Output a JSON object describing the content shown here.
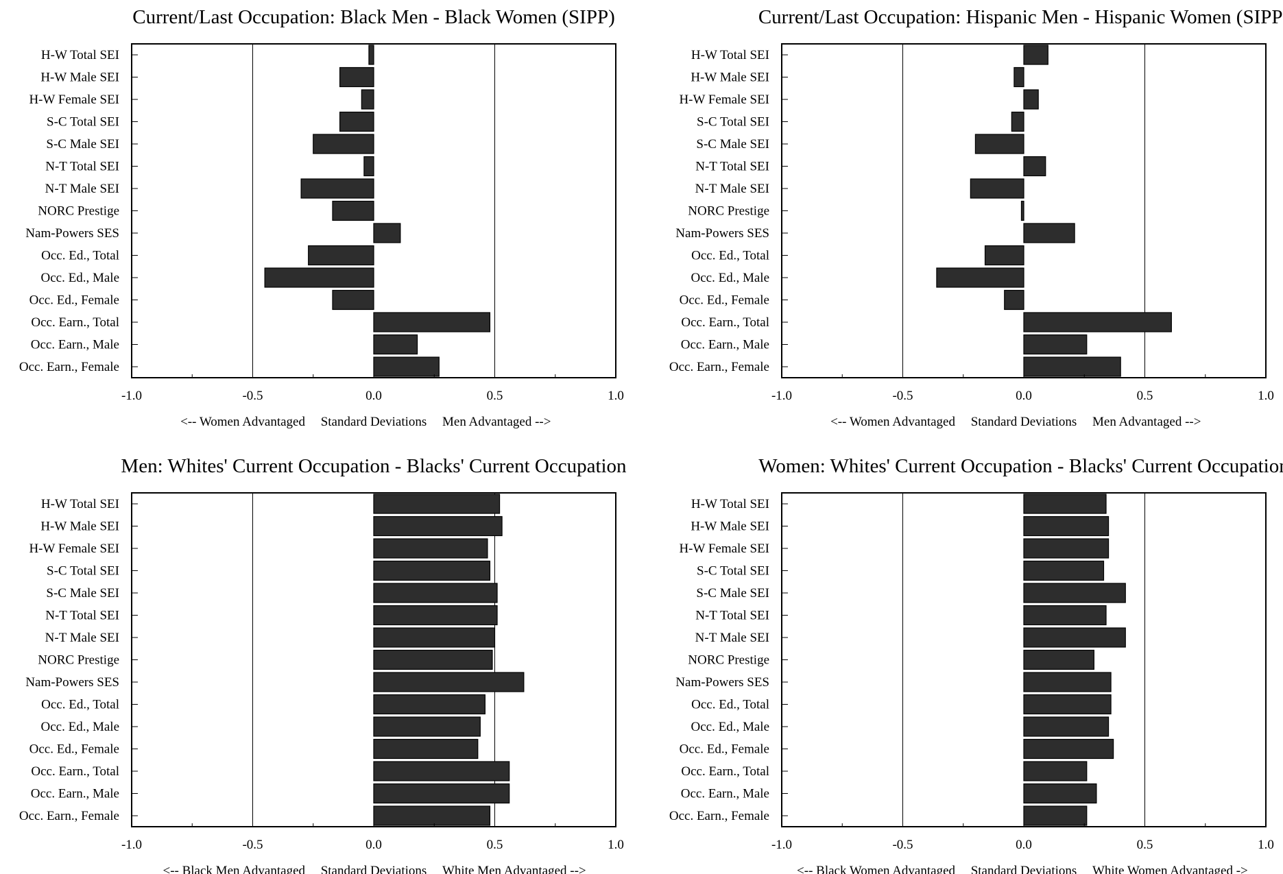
{
  "chart_data": [
    {
      "type": "bar",
      "orientation": "horizontal",
      "title": "Current/Last Occupation: Black Men - Black Women (SIPP)",
      "xlabel_left": "<-- Women Advantaged",
      "xlabel_center": "Standard Deviations",
      "xlabel_right": "Men Advantaged -->",
      "xlim": [
        -1.0,
        1.0
      ],
      "xticks": [
        "-1.0",
        "-0.5",
        "0.0",
        "0.5",
        "1.0"
      ],
      "reference_lines": [
        -0.5,
        0.5
      ],
      "bar_color": "#2d2d2d",
      "categories": [
        "H-W Total SEI",
        "H-W Male SEI",
        "H-W Female SEI",
        "S-C Total SEI",
        "S-C Male SEI",
        "N-T Total SEI",
        "N-T Male SEI",
        "NORC Prestige",
        "Nam-Powers SES",
        "Occ. Ed., Total",
        "Occ. Ed., Male",
        "Occ. Ed., Female",
        "Occ. Earn., Total",
        "Occ. Earn., Male",
        "Occ. Earn., Female"
      ],
      "values": [
        -0.02,
        -0.14,
        -0.05,
        -0.14,
        -0.25,
        -0.04,
        -0.3,
        -0.17,
        0.11,
        -0.27,
        -0.45,
        -0.17,
        0.48,
        0.18,
        0.27
      ]
    },
    {
      "type": "bar",
      "orientation": "horizontal",
      "title": "Current/Last Occupation: Hispanic Men - Hispanic Women (SIPP)",
      "xlabel_left": "<-- Women Advantaged",
      "xlabel_center": "Standard Deviations",
      "xlabel_right": "Men Advantaged -->",
      "xlim": [
        -1.0,
        1.0
      ],
      "xticks": [
        "-1.0",
        "-0.5",
        "0.0",
        "0.5",
        "1.0"
      ],
      "reference_lines": [
        -0.5,
        0.5
      ],
      "bar_color": "#2d2d2d",
      "categories": [
        "H-W Total SEI",
        "H-W Male SEI",
        "H-W Female SEI",
        "S-C Total SEI",
        "S-C Male SEI",
        "N-T Total SEI",
        "N-T Male SEI",
        "NORC Prestige",
        "Nam-Powers SES",
        "Occ. Ed., Total",
        "Occ. Ed., Male",
        "Occ. Ed., Female",
        "Occ. Earn., Total",
        "Occ. Earn., Male",
        "Occ. Earn., Female"
      ],
      "values": [
        0.1,
        -0.04,
        0.06,
        -0.05,
        -0.2,
        0.09,
        -0.22,
        -0.01,
        0.21,
        -0.16,
        -0.36,
        -0.08,
        0.61,
        0.26,
        0.4
      ]
    },
    {
      "type": "bar",
      "orientation": "horizontal",
      "title": "Men: Whites' Current Occupation - Blacks' Current Occupation",
      "xlabel_left": "<-- Black Men Advantaged",
      "xlabel_center": "Standard Deviations",
      "xlabel_right": "White Men Advantaged -->",
      "xlim": [
        -1.0,
        1.0
      ],
      "xticks": [
        "-1.0",
        "-0.5",
        "0.0",
        "0.5",
        "1.0"
      ],
      "reference_lines": [
        -0.5,
        0.5
      ],
      "bar_color": "#2d2d2d",
      "categories": [
        "H-W Total SEI",
        "H-W Male SEI",
        "H-W Female SEI",
        "S-C Total SEI",
        "S-C Male SEI",
        "N-T Total SEI",
        "N-T Male SEI",
        "NORC Prestige",
        "Nam-Powers SES",
        "Occ. Ed., Total",
        "Occ. Ed., Male",
        "Occ. Ed., Female",
        "Occ. Earn., Total",
        "Occ. Earn., Male",
        "Occ. Earn., Female"
      ],
      "values": [
        0.52,
        0.53,
        0.47,
        0.48,
        0.51,
        0.51,
        0.5,
        0.49,
        0.62,
        0.46,
        0.44,
        0.43,
        0.56,
        0.56,
        0.48
      ]
    },
    {
      "type": "bar",
      "orientation": "horizontal",
      "title": "Women: Whites' Current Occupation - Blacks' Current Occupation",
      "xlabel_left": "<-- Black Women Advantaged",
      "xlabel_center": "Standard Deviations",
      "xlabel_right": "White Women Advantaged ->",
      "xlim": [
        -1.0,
        1.0
      ],
      "xticks": [
        "-1.0",
        "-0.5",
        "0.0",
        "0.5",
        "1.0"
      ],
      "reference_lines": [
        -0.5,
        0.5
      ],
      "bar_color": "#2d2d2d",
      "categories": [
        "H-W Total SEI",
        "H-W Male SEI",
        "H-W Female SEI",
        "S-C Total SEI",
        "S-C Male SEI",
        "N-T Total SEI",
        "N-T Male SEI",
        "NORC Prestige",
        "Nam-Powers SES",
        "Occ. Ed., Total",
        "Occ. Ed., Male",
        "Occ. Ed., Female",
        "Occ. Earn., Total",
        "Occ. Earn., Male",
        "Occ. Earn., Female"
      ],
      "values": [
        0.34,
        0.35,
        0.35,
        0.33,
        0.42,
        0.34,
        0.42,
        0.29,
        0.36,
        0.36,
        0.35,
        0.37,
        0.26,
        0.3,
        0.26
      ]
    }
  ]
}
